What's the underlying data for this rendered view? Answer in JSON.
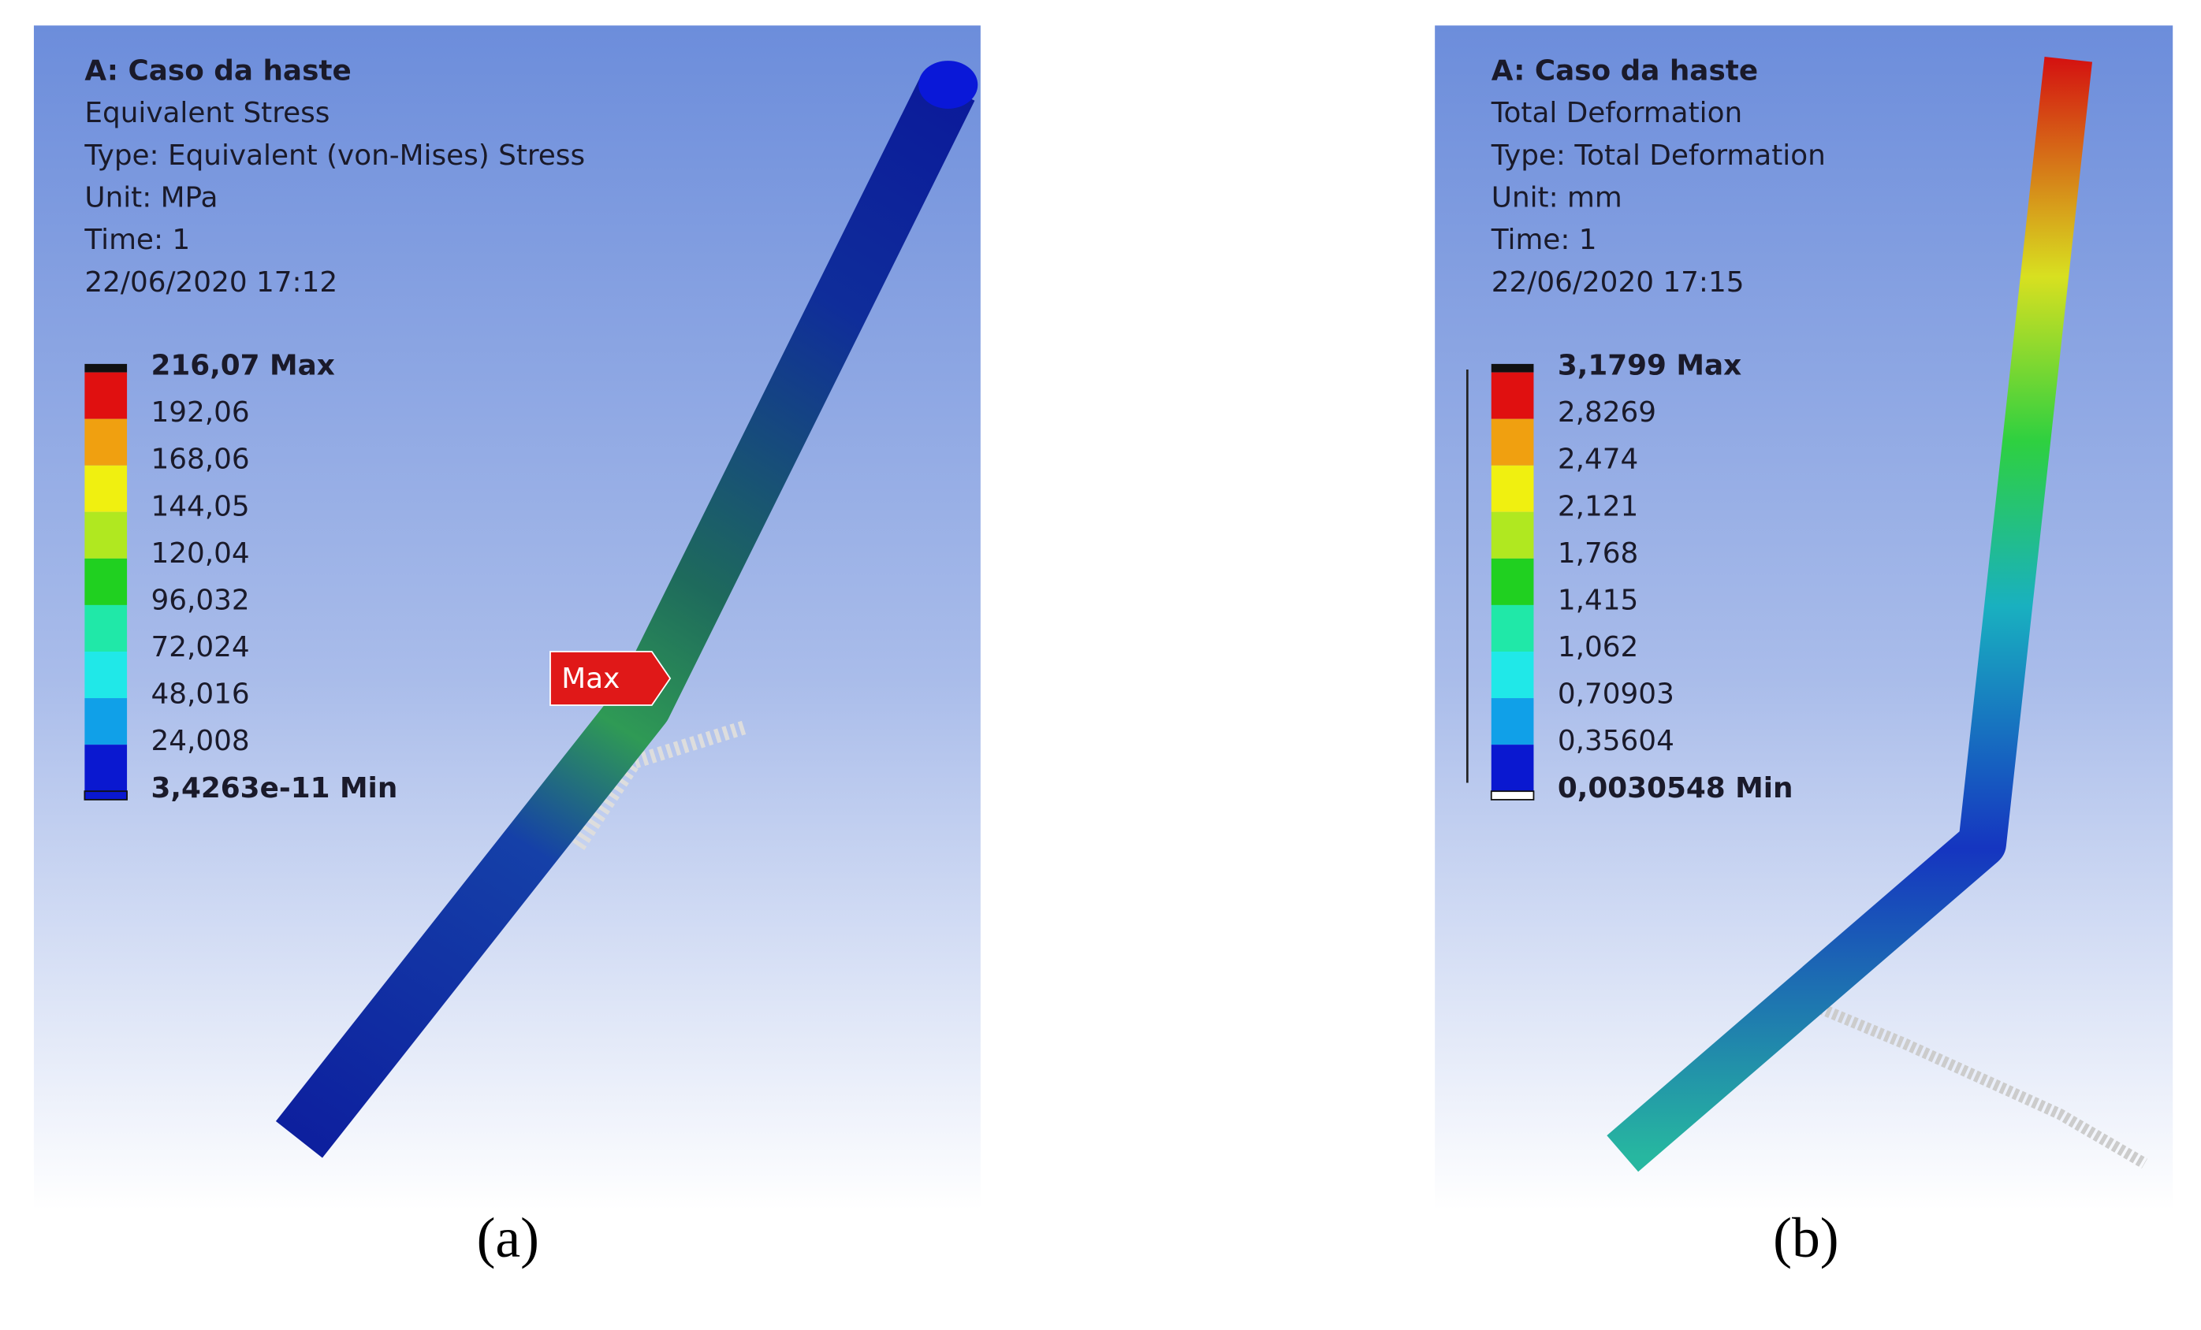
{
  "panels": [
    {
      "caption": "(a)",
      "header": [
        "A: Caso da haste",
        "Equivalent Stress",
        "Type: Equivalent (von-Mises) Stress",
        "Unit: MPa",
        "Time: 1",
        "22/06/2020 17:12"
      ],
      "legend": [
        "216,07 Max",
        "192,06",
        "168,06",
        "144,05",
        "120,04",
        "96,032",
        "72,024",
        "48,016",
        "24,008",
        "3,4263e-11 Min"
      ],
      "marker": "Max"
    },
    {
      "caption": "(b)",
      "header": [
        "A: Caso da haste",
        "Total Deformation",
        "Type: Total Deformation",
        "Unit: mm",
        "Time: 1",
        "22/06/2020 17:15"
      ],
      "legend": [
        "3,1799 Max",
        "2,8269",
        "2,474",
        "2,121",
        "1,768",
        "1,415",
        "1,062",
        "0,70903",
        "0,35604",
        "0,0030548 Min"
      ]
    }
  ]
}
